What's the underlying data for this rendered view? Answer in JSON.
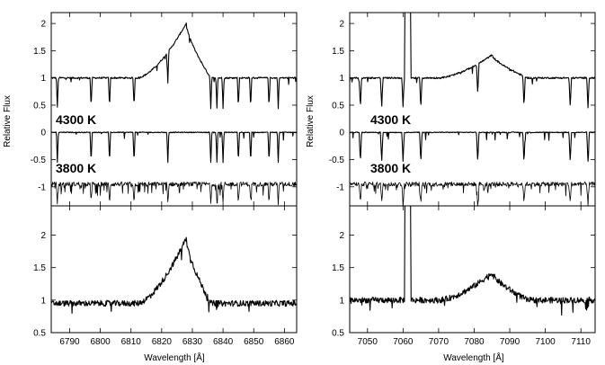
{
  "chart_data": [
    {
      "type": "line",
      "panel": "top-left",
      "ylabel": "Relative Flux",
      "xlim": [
        6784,
        6864
      ],
      "ylim": [
        -1.35,
        2.2
      ],
      "yticks": [
        "-1",
        "-0.5",
        "0",
        "0.5",
        "1",
        "1.5",
        "2"
      ],
      "annotations": [
        "4300 K",
        "3800 K"
      ],
      "series": [
        {
          "key": "observed",
          "baseline": 1.0,
          "peak_x": 6828,
          "peak_y": 2.0,
          "emission_range": [
            6812,
            6836
          ]
        },
        {
          "key": "4300 K",
          "baseline": 0.0
        },
        {
          "key": "3800 K",
          "baseline": -0.95
        }
      ],
      "absorption_lines_x": [
        6786,
        6797,
        6803,
        6811,
        6822,
        6836,
        6838,
        6840,
        6845,
        6849,
        6855,
        6858
      ]
    },
    {
      "type": "line",
      "panel": "bottom-left",
      "xlabel": "Wavelength [Å]",
      "xlim": [
        6784,
        6864
      ],
      "ylim": [
        0.5,
        2.45
      ],
      "xticks": [
        "6790",
        "6800",
        "6810",
        "6820",
        "6830",
        "6840",
        "6850",
        "6860"
      ],
      "yticks": [
        "0.5",
        "1",
        "1.5",
        "2"
      ],
      "series": [
        {
          "key": "residual",
          "baseline": 0.95,
          "peak_x": 6828,
          "peak_y": 1.95,
          "emission_range": [
            6812,
            6836
          ]
        }
      ]
    },
    {
      "type": "line",
      "panel": "top-right",
      "ylabel": "Relative Flux",
      "xlim": [
        7045,
        7114
      ],
      "ylim": [
        -1.35,
        2.2
      ],
      "yticks": [
        "-1",
        "-0.5",
        "0",
        "0.5",
        "1",
        "1.5",
        "2"
      ],
      "annotations": [
        "4300 K",
        "3800 K"
      ],
      "series": [
        {
          "key": "observed",
          "baseline": 1.0,
          "peak_x": 7085,
          "peak_y": 1.42,
          "emission_range": [
            7070,
            7095
          ],
          "spike_x": [
            7060.4,
            7062.2
          ]
        },
        {
          "key": "4300 K",
          "baseline": 0.0
        },
        {
          "key": "3800 K",
          "baseline": -0.95
        }
      ],
      "absorption_lines_x": [
        7048,
        7054,
        7060,
        7065,
        7081,
        7094,
        7107,
        7112
      ]
    },
    {
      "type": "line",
      "panel": "bottom-right",
      "xlabel": "Wavelength [Å]",
      "xlim": [
        7045,
        7114
      ],
      "ylim": [
        0.5,
        2.45
      ],
      "xticks": [
        "7050",
        "7060",
        "7070",
        "7080",
        "7090",
        "7100",
        "7110"
      ],
      "yticks": [
        "0.5",
        "1",
        "1.5",
        "2"
      ],
      "series": [
        {
          "key": "residual",
          "baseline": 1.0,
          "peak_x": 7085,
          "peak_y": 1.42,
          "emission_range": [
            7070,
            7095
          ],
          "spike_x": [
            7060.4,
            7062.2
          ]
        }
      ]
    }
  ]
}
